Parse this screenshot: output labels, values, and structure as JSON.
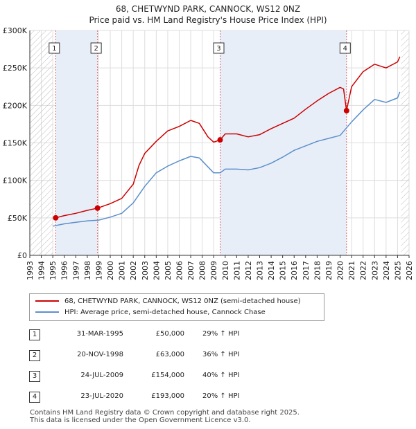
{
  "chart_data": {
    "type": "line",
    "title": "68, CHETWYND PARK, CANNOCK, WS12 0NZ",
    "subtitle": "Price paid vs. HM Land Registry's House Price Index (HPI)",
    "xlabel": "",
    "ylabel": "",
    "xlim": [
      1993,
      2026
    ],
    "ylim": [
      0,
      300000
    ],
    "x_ticks": [
      "1993",
      "1994",
      "1995",
      "1996",
      "1997",
      "1998",
      "1999",
      "2000",
      "2001",
      "2002",
      "2003",
      "2004",
      "2005",
      "2006",
      "2007",
      "2008",
      "2009",
      "2010",
      "2011",
      "2012",
      "2013",
      "2014",
      "2015",
      "2016",
      "2017",
      "2018",
      "2019",
      "2020",
      "2021",
      "2022",
      "2023",
      "2024",
      "2025",
      "2026"
    ],
    "y_ticks": [
      {
        "value": 0,
        "label": "£0"
      },
      {
        "value": 50000,
        "label": "£50K"
      },
      {
        "value": 100000,
        "label": "£100K"
      },
      {
        "value": 150000,
        "label": "£150K"
      },
      {
        "value": 200000,
        "label": "£200K"
      },
      {
        "value": 250000,
        "label": "£250K"
      },
      {
        "value": 300000,
        "label": "£300K"
      }
    ],
    "grid": true,
    "series": [
      {
        "name": "68, CHETWYND PARK, CANNOCK, WS12 0NZ (semi-detached house)",
        "color": "#cc0000",
        "x": [
          1995.25,
          1996,
          1997,
          1998,
          1998.9,
          2000,
          2001,
          2002,
          2002.5,
          2003,
          2004,
          2005,
          2006,
          2007,
          2007.75,
          2008.5,
          2009.0,
          2009.56,
          2010,
          2011,
          2012,
          2013,
          2014,
          2015,
          2016,
          2017,
          2018,
          2019,
          2020.0,
          2020.3,
          2020.56,
          2021,
          2022,
          2023,
          2024,
          2025,
          2025.2
        ],
        "y": [
          50000,
          53000,
          56000,
          60000,
          63000,
          69000,
          76000,
          95000,
          120000,
          136000,
          152000,
          166000,
          172000,
          180000,
          176000,
          158000,
          151000,
          154000,
          162000,
          162000,
          158000,
          161000,
          169000,
          176000,
          183000,
          195000,
          206000,
          216000,
          224000,
          222000,
          193000,
          225000,
          245000,
          255000,
          250000,
          258000,
          265000
        ]
      },
      {
        "name": "HPI: Average price, semi-detached house, Cannock Chase",
        "color": "#5b8fcc",
        "x": [
          1995,
          1996,
          1997,
          1998,
          1999,
          2000,
          2001,
          2002,
          2003,
          2004,
          2005,
          2006,
          2007,
          2007.75,
          2008.5,
          2009.0,
          2009.56,
          2010,
          2011,
          2012,
          2013,
          2014,
          2015,
          2016,
          2017,
          2018,
          2019,
          2020,
          2021,
          2022,
          2023,
          2024,
          2025,
          2025.2
        ],
        "y": [
          39000,
          42000,
          44000,
          46000,
          47000,
          51000,
          56000,
          70000,
          92000,
          110000,
          119000,
          126000,
          132000,
          130000,
          118000,
          110000,
          110000,
          115000,
          115000,
          114000,
          117000,
          123000,
          131000,
          140000,
          146000,
          152000,
          156000,
          160000,
          178000,
          194000,
          208000,
          204000,
          210000,
          218000
        ]
      }
    ],
    "sales": [
      {
        "num": "1",
        "x": 1995.25,
        "y": 50000
      },
      {
        "num": "2",
        "x": 1998.89,
        "y": 63000
      },
      {
        "num": "3",
        "x": 2009.56,
        "y": 154000
      },
      {
        "num": "4",
        "x": 2020.56,
        "y": 193000
      }
    ]
  },
  "legend": {
    "property_label": "68, CHETWYND PARK, CANNOCK, WS12 0NZ (semi-detached house)",
    "hpi_label": "HPI: Average price, semi-detached house, Cannock Chase"
  },
  "table": [
    {
      "num": "1",
      "date": "31-MAR-1995",
      "price": "£50,000",
      "hpi": "29% ↑ HPI"
    },
    {
      "num": "2",
      "date": "20-NOV-1998",
      "price": "£63,000",
      "hpi": "36% ↑ HPI"
    },
    {
      "num": "3",
      "date": "24-JUL-2009",
      "price": "£154,000",
      "hpi": "40% ↑ HPI"
    },
    {
      "num": "4",
      "date": "23-JUL-2020",
      "price": "£193,000",
      "hpi": "20% ↑ HPI"
    }
  ],
  "footer": {
    "line1": "Contains HM Land Registry data © Crown copyright and database right 2025.",
    "line2": "This data is licensed under the Open Government Licence v3.0."
  },
  "colors": {
    "property": "#cc0000",
    "hpi": "#5b8fcc",
    "shade": "#e8eef8",
    "hatch": "#bbbbbb",
    "grid": "#dddddd"
  }
}
